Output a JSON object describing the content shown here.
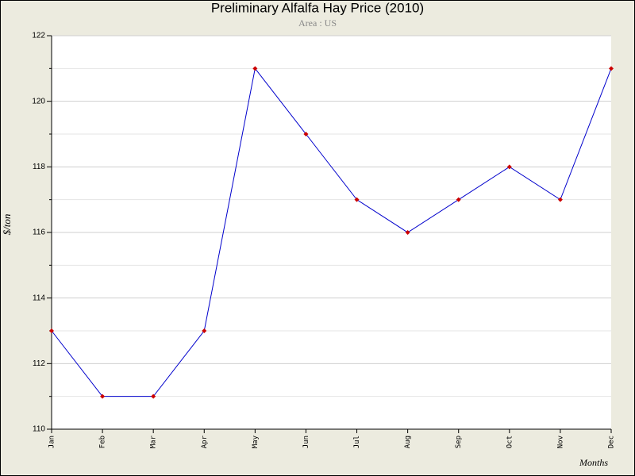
{
  "chart_data": {
    "type": "line",
    "title": "Preliminary Alfalfa Hay Price (2010)",
    "subtitle": "Area : US",
    "xlabel": "Months",
    "ylabel": "$/ton",
    "categories": [
      "Jan",
      "Feb",
      "Mar",
      "Apr",
      "May",
      "Jun",
      "Jul",
      "Aug",
      "Sep",
      "Oct",
      "Nov",
      "Dec"
    ],
    "values": [
      113,
      111,
      111,
      113,
      121,
      119,
      117,
      116,
      117,
      118,
      117,
      121
    ],
    "color": "#0000cc",
    "marker_color": "#cc0000",
    "ylim": [
      110,
      122
    ],
    "yticks": [
      110,
      112,
      114,
      116,
      118,
      120,
      122
    ],
    "minor_yticks": [
      111,
      113,
      115,
      117,
      119,
      121
    ],
    "grid": true
  }
}
